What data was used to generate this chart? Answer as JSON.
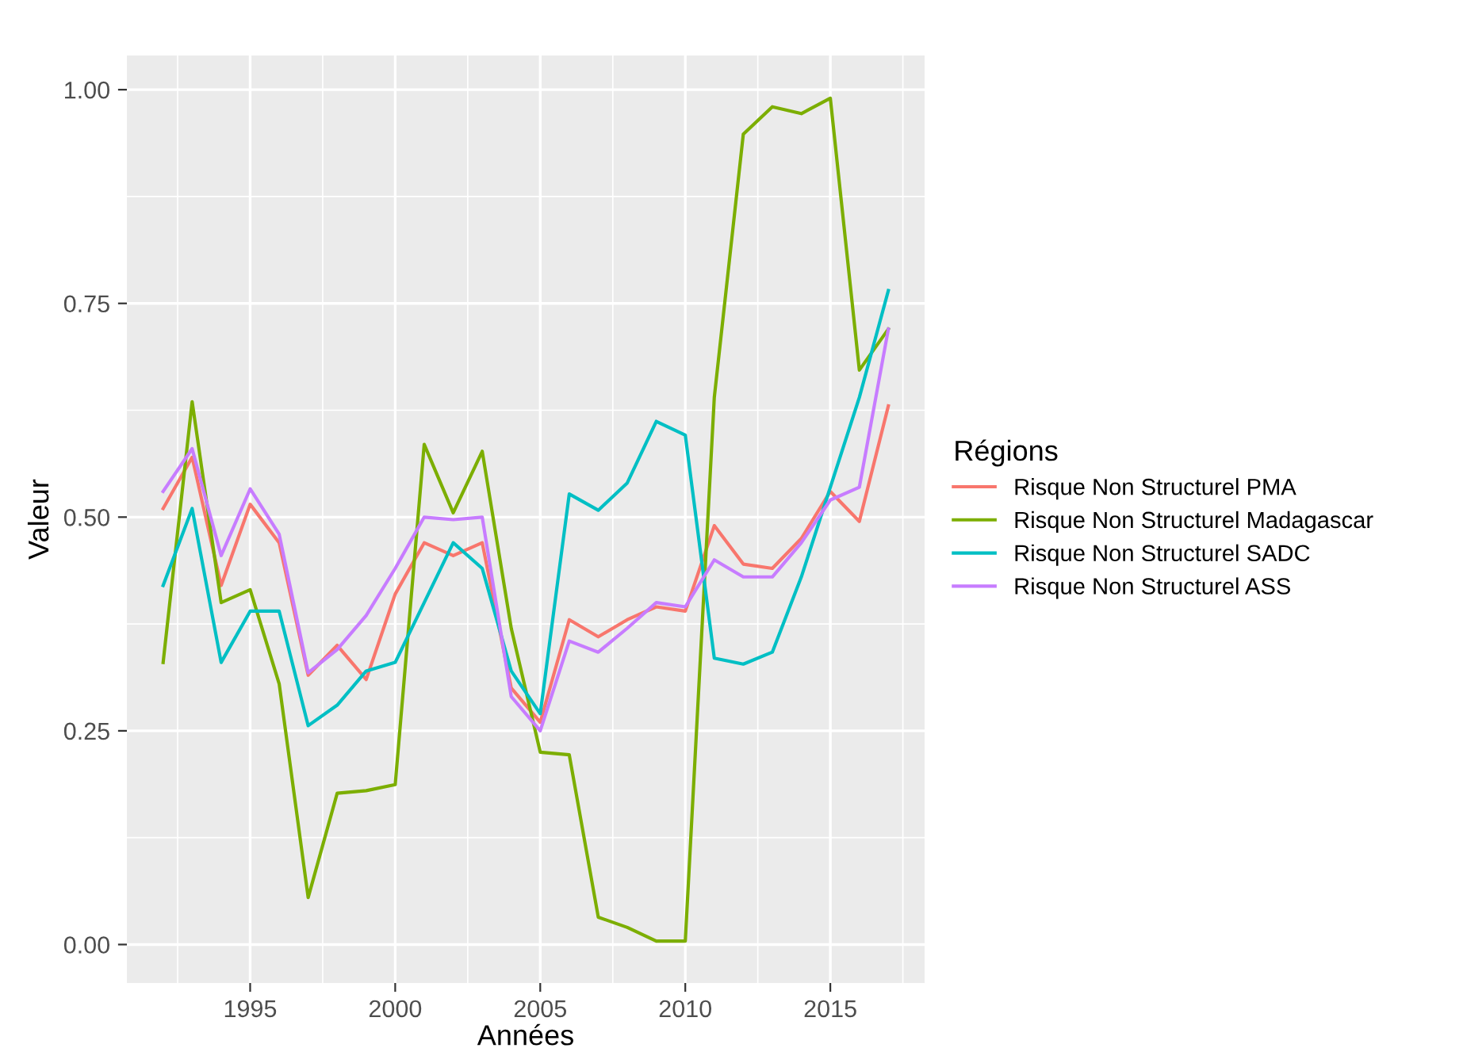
{
  "chart_data": {
    "type": "line",
    "xlabel": "Années",
    "ylabel": "Valeur",
    "legend_title": "Régions",
    "x": [
      1992,
      1993,
      1994,
      1995,
      1996,
      1997,
      1998,
      1999,
      2000,
      2001,
      2002,
      2003,
      2004,
      2005,
      2006,
      2007,
      2008,
      2009,
      2010,
      2011,
      2012,
      2013,
      2014,
      2015,
      2016,
      2017
    ],
    "series": [
      {
        "name": "Risque Non Structurel PMA",
        "color": "#f8766d",
        "values": [
          0.51,
          0.57,
          0.42,
          0.515,
          0.47,
          0.315,
          0.35,
          0.31,
          0.41,
          0.47,
          0.455,
          0.47,
          0.3,
          0.26,
          0.38,
          0.36,
          0.38,
          0.395,
          0.39,
          0.49,
          0.445,
          0.44,
          0.475,
          0.53,
          0.495,
          0.63
        ]
      },
      {
        "name": "Risque Non Structurel Madagascar",
        "color": "#7cae00",
        "values": [
          0.33,
          0.635,
          0.4,
          0.415,
          0.305,
          0.055,
          0.177,
          0.18,
          0.187,
          0.585,
          0.505,
          0.577,
          0.37,
          0.225,
          0.222,
          0.032,
          0.02,
          0.004,
          0.004,
          0.64,
          0.948,
          0.98,
          0.972,
          0.99,
          0.672,
          0.72
        ]
      },
      {
        "name": "Risque Non Structurel SADC",
        "color": "#00bfc4",
        "values": [
          0.42,
          0.51,
          0.33,
          0.39,
          0.39,
          0.256,
          0.28,
          0.32,
          0.33,
          0.4,
          0.47,
          0.44,
          0.32,
          0.27,
          0.527,
          0.508,
          0.54,
          0.612,
          0.596,
          0.335,
          0.328,
          0.342,
          0.43,
          0.535,
          0.64,
          0.765
        ]
      },
      {
        "name": "Risque Non Structurel ASS",
        "color": "#c77cff",
        "values": [
          0.53,
          0.58,
          0.455,
          0.533,
          0.48,
          0.318,
          0.345,
          0.385,
          0.44,
          0.5,
          0.497,
          0.5,
          0.29,
          0.25,
          0.355,
          0.342,
          0.37,
          0.4,
          0.395,
          0.45,
          0.43,
          0.43,
          0.47,
          0.52,
          0.535,
          0.72
        ]
      }
    ],
    "xlim": [
      1990.75,
      2018.25
    ],
    "ylim": [
      -0.045,
      1.04
    ],
    "xticks": [
      1995,
      2000,
      2005,
      2010,
      2015
    ],
    "yticks": [
      {
        "value": 0,
        "label": "0.00"
      },
      {
        "value": 0.25,
        "label": "0.25"
      },
      {
        "value": 0.5,
        "label": "0.50"
      },
      {
        "value": 0.75,
        "label": "0.75"
      },
      {
        "value": 1,
        "label": "1.00"
      }
    ],
    "grid": true,
    "legend": "right"
  }
}
